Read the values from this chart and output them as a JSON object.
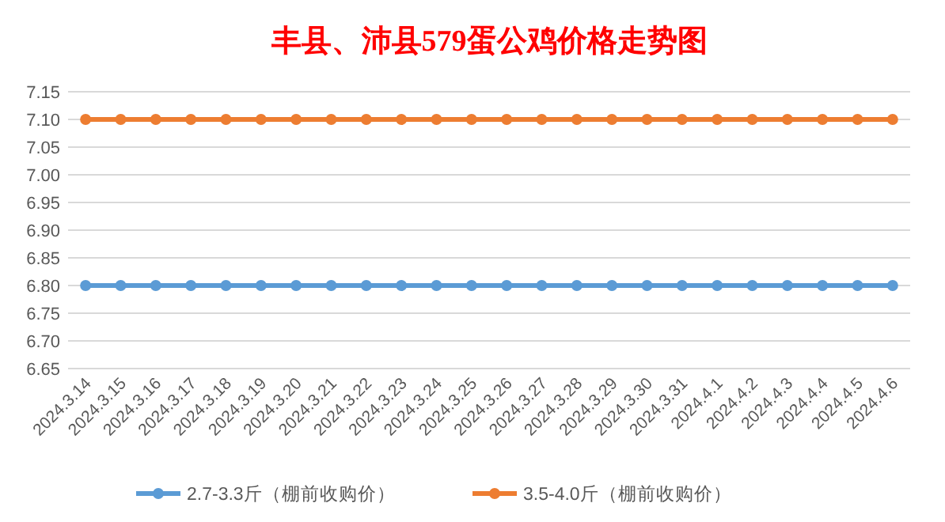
{
  "chart_data": {
    "type": "line",
    "title": "丰县、沛县579蛋公鸡价格走势图",
    "categories": [
      "2024.3.14",
      "2024.3.15",
      "2024.3.16",
      "2024.3.17",
      "2024.3.18",
      "2024.3.19",
      "2024.3.20",
      "2024.3.21",
      "2024.3.22",
      "2024.3.23",
      "2024.3.24",
      "2024.3.25",
      "2024.3.26",
      "2024.3.27",
      "2024.3.28",
      "2024.3.29",
      "2024.3.30",
      "2024.3.31",
      "2024.4.1",
      "2024.4.2",
      "2024.4.3",
      "2024.4.4",
      "2024.4.5",
      "2024.4.6"
    ],
    "series": [
      {
        "name": "2.7-3.3斤（棚前收购价）",
        "color": "#5b9bd5",
        "values": [
          6.8,
          6.8,
          6.8,
          6.8,
          6.8,
          6.8,
          6.8,
          6.8,
          6.8,
          6.8,
          6.8,
          6.8,
          6.8,
          6.8,
          6.8,
          6.8,
          6.8,
          6.8,
          6.8,
          6.8,
          6.8,
          6.8,
          6.8,
          6.8
        ]
      },
      {
        "name": "3.5-4.0斤（棚前收购价）",
        "color": "#ed7d31",
        "values": [
          7.1,
          7.1,
          7.1,
          7.1,
          7.1,
          7.1,
          7.1,
          7.1,
          7.1,
          7.1,
          7.1,
          7.1,
          7.1,
          7.1,
          7.1,
          7.1,
          7.1,
          7.1,
          7.1,
          7.1,
          7.1,
          7.1,
          7.1,
          7.1
        ]
      }
    ],
    "ylim": [
      6.65,
      7.15
    ],
    "yticks": [
      6.65,
      {
        "value": 6.7,
        "label": "6.70"
      },
      6.75,
      {
        "value": 6.8,
        "label": "6.80"
      },
      6.85,
      {
        "value": 6.9,
        "label": "6.90"
      },
      6.95,
      {
        "value": 7.0,
        "label": "7.00"
      },
      7.05,
      {
        "value": 7.1,
        "label": "7.10"
      },
      7.15
    ],
    "grid": "y",
    "legend": "bottom",
    "marker": "circle",
    "line_style": "solid"
  }
}
